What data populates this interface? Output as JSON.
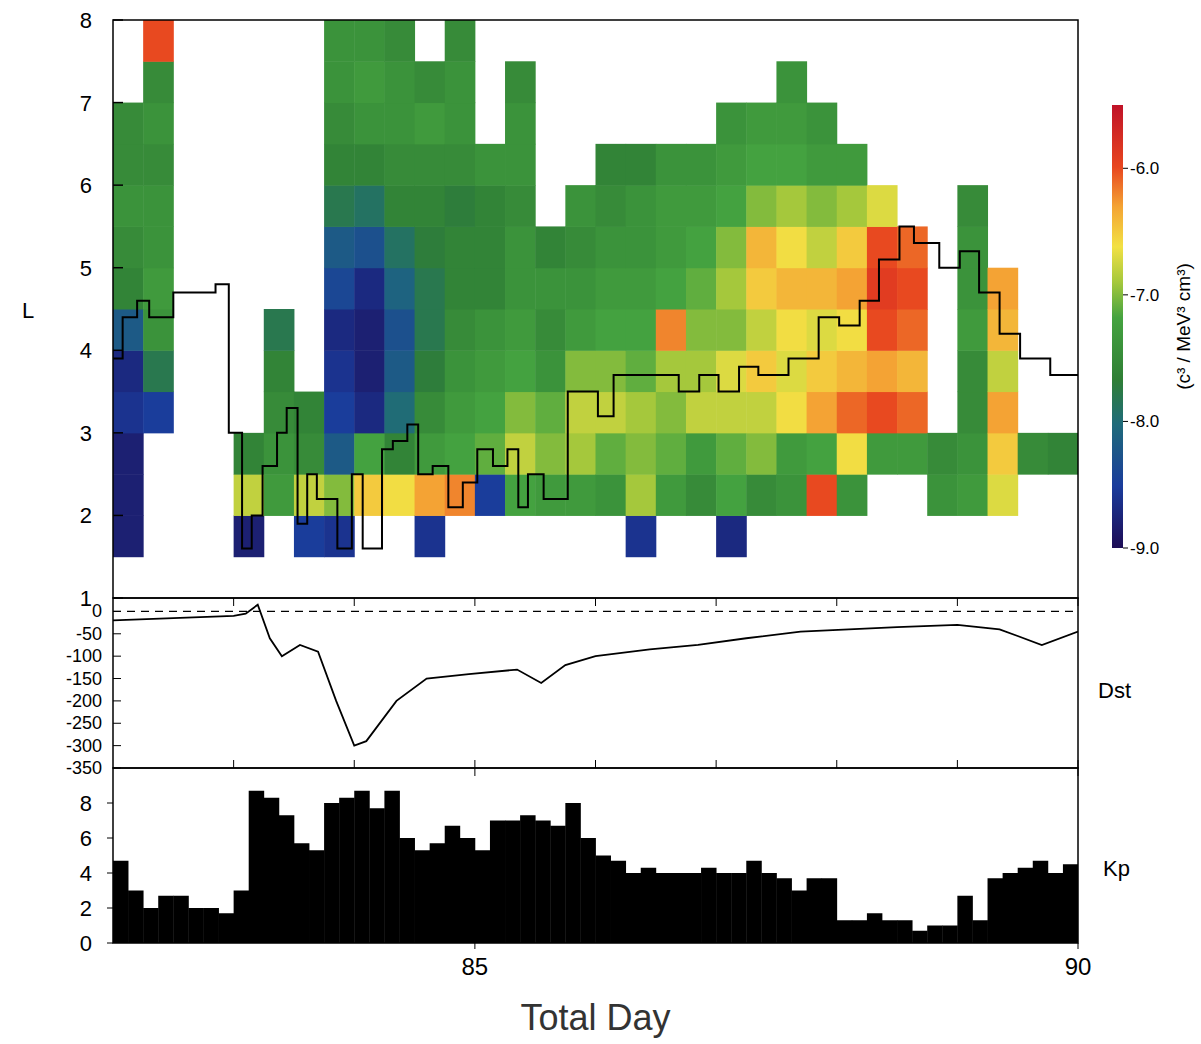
{
  "chart_data": [
    {
      "type": "heatmap",
      "ylabel": "L",
      "xlim": [
        82,
        90
      ],
      "ylim": [
        1,
        8
      ],
      "yticks": [
        1,
        2,
        3,
        4,
        5,
        6,
        7,
        8
      ],
      "tick_labels": "y",
      "x_bins": [
        82,
        82.25,
        82.5,
        82.75,
        83,
        83.25,
        83.5,
        83.75,
        84,
        84.25,
        84.5,
        84.75,
        85,
        85.25,
        85.5,
        85.75,
        86,
        86.25,
        86.5,
        86.75,
        87,
        87.25,
        87.5,
        87.75,
        88,
        88.25,
        88.5,
        88.75,
        89,
        89.25,
        89.5,
        89.75,
        90
      ],
      "y_bins": [
        1.5,
        2,
        2.5,
        3,
        3.5,
        4,
        4.5,
        5,
        5.5,
        6,
        6.5,
        7,
        7.5,
        8
      ],
      "z": [
        [
          -8.8,
          -8.8,
          -8.8,
          -8.6,
          -8.7,
          -8.2,
          -7.6,
          -7.5,
          -7.4,
          -7.5,
          -7.5,
          null,
          null
        ],
        [
          null,
          null,
          null,
          -8.5,
          -7.8,
          -7.4,
          -7.3,
          -7.4,
          -7.4,
          -7.5,
          -7.4,
          -7.5,
          -6.0
        ],
        [
          null,
          null,
          null,
          null,
          null,
          null,
          null,
          null,
          null,
          null,
          null,
          null,
          null
        ],
        [
          null,
          null,
          null,
          null,
          null,
          null,
          null,
          null,
          null,
          null,
          null,
          null,
          null
        ],
        [
          -8.8,
          -6.8,
          -7.6,
          null,
          null,
          null,
          null,
          null,
          null,
          null,
          null,
          null,
          null
        ],
        [
          null,
          -7.3,
          -7.4,
          -7.5,
          -7.6,
          -7.8,
          null,
          null,
          null,
          null,
          null,
          null,
          null
        ],
        [
          -8.5,
          -6.8,
          -7.5,
          -7.6,
          null,
          null,
          null,
          null,
          null,
          null,
          null,
          null,
          null
        ],
        [
          -8.6,
          -7.0,
          -8.2,
          -8.5,
          -8.6,
          -8.7,
          -8.4,
          -8.2,
          -7.8,
          -7.6,
          -7.5,
          -7.4,
          -7.4
        ],
        [
          null,
          -6.5,
          -7.2,
          -8.7,
          -8.8,
          -8.8,
          -8.7,
          -8.3,
          -7.9,
          -7.6,
          -7.4,
          -7.3,
          -7.4
        ],
        [
          null,
          -6.6,
          -7.6,
          -8.0,
          -8.2,
          -8.3,
          -8.1,
          -7.9,
          -7.6,
          -7.5,
          -7.4,
          -7.4,
          -7.5
        ],
        [
          -8.6,
          -6.3,
          -7.3,
          -7.5,
          -7.7,
          -7.8,
          -7.8,
          -7.7,
          -7.6,
          -7.5,
          -7.3,
          -7.5,
          null
        ],
        [
          null,
          -6.2,
          -7.2,
          -7.3,
          -7.4,
          -7.5,
          -7.6,
          -7.6,
          -7.7,
          -7.5,
          -7.4,
          -7.4,
          -7.5
        ],
        [
          null,
          -8.5,
          -7.1,
          -7.2,
          -7.3,
          -7.4,
          -7.6,
          -7.6,
          -7.6,
          -7.4,
          null,
          null,
          null
        ],
        [
          null,
          -7.2,
          -6.8,
          -7.0,
          -7.2,
          -7.3,
          -7.4,
          -7.4,
          -7.5,
          -7.4,
          -7.4,
          -7.5,
          null
        ],
        [
          null,
          -7.3,
          -7.0,
          -7.1,
          -7.4,
          -7.5,
          -7.4,
          -7.6,
          null,
          null,
          null,
          null,
          null
        ],
        [
          null,
          -7.3,
          -6.9,
          -6.8,
          -7.0,
          -7.3,
          -7.4,
          -7.5,
          -7.4,
          null,
          null,
          null,
          null
        ],
        [
          null,
          -7.4,
          -7.1,
          -6.8,
          -7.0,
          -7.2,
          -7.3,
          -7.4,
          -7.5,
          -7.6,
          null,
          null,
          null
        ],
        [
          -8.6,
          -6.9,
          -7.0,
          -6.9,
          -7.1,
          -7.2,
          -7.3,
          -7.4,
          -7.4,
          -7.6,
          null,
          null,
          null
        ],
        [
          null,
          -7.3,
          -7.1,
          -7.0,
          -6.9,
          -6.2,
          -7.2,
          -7.3,
          -7.3,
          -7.4,
          null,
          null,
          null
        ],
        [
          null,
          -7.5,
          -7.3,
          -6.8,
          -6.9,
          -7.0,
          -7.1,
          -7.2,
          -7.3,
          -7.4,
          null,
          null,
          null
        ],
        [
          -8.7,
          -7.2,
          -7.1,
          -6.8,
          -6.7,
          -7.0,
          -6.9,
          -7.0,
          -7.2,
          -7.3,
          -7.4,
          null,
          null
        ],
        [
          null,
          -7.5,
          -7.0,
          -6.8,
          -6.5,
          -6.8,
          -6.5,
          -6.4,
          -7.0,
          -7.2,
          -7.3,
          null,
          null
        ],
        [
          null,
          -7.4,
          -7.3,
          -6.6,
          -6.7,
          -6.6,
          -6.4,
          -6.6,
          -6.9,
          -7.2,
          -7.3,
          -7.4,
          null
        ],
        [
          null,
          -6.0,
          -7.2,
          -6.3,
          -6.5,
          -6.7,
          -6.4,
          -6.8,
          -7.0,
          -7.3,
          -7.4,
          null,
          null
        ],
        [
          null,
          -7.4,
          -6.6,
          -6.1,
          -6.4,
          -6.6,
          -6.3,
          -6.5,
          -6.9,
          -7.3,
          null,
          null,
          null
        ],
        [
          null,
          null,
          -7.3,
          -6.0,
          -6.3,
          -6.0,
          -5.9,
          -6.0,
          -6.7,
          null,
          null,
          null,
          null
        ],
        [
          null,
          null,
          -7.3,
          -6.1,
          -6.4,
          -6.1,
          -6.0,
          -6.1,
          null,
          null,
          null,
          null,
          null
        ],
        [
          null,
          -7.4,
          -7.5,
          null,
          null,
          null,
          null,
          null,
          null,
          null,
          null,
          null,
          null
        ],
        [
          null,
          -7.3,
          -7.4,
          -7.5,
          -7.5,
          -7.3,
          -7.4,
          -7.4,
          -7.5,
          null,
          null,
          null,
          null
        ],
        [
          null,
          -6.7,
          -6.5,
          -6.3,
          -6.8,
          -6.4,
          -6.3,
          null,
          null,
          null,
          null,
          null,
          null
        ],
        [
          null,
          null,
          -7.5,
          null,
          null,
          null,
          null,
          null,
          null,
          null,
          null,
          null,
          null
        ],
        [
          null,
          null,
          -7.6,
          null,
          null,
          null,
          null,
          null,
          null,
          null,
          null,
          null,
          null
        ]
      ],
      "colorbar": {
        "range": [
          -9,
          -5.5
        ],
        "ticks": [
          {
            "value": -6,
            "label": "-6.0"
          },
          {
            "value": -7,
            "label": "-7.0"
          },
          {
            "value": -8,
            "label": "-8.0"
          },
          {
            "value": -9,
            "label": "-9.0"
          }
        ],
        "label": "(c³ / MeV³ cm³)"
      },
      "series": [
        {
          "type": "line",
          "color": "#000000",
          "line_style": "step",
          "x": [
            82.0,
            82.08,
            82.2,
            82.3,
            82.5,
            82.75,
            82.85,
            82.96,
            83.07,
            83.15,
            83.24,
            83.36,
            83.44,
            83.53,
            83.61,
            83.69,
            83.86,
            83.98,
            84.07,
            84.23,
            84.32,
            84.44,
            84.53,
            84.65,
            84.78,
            84.9,
            85.02,
            85.15,
            85.27,
            85.36,
            85.44,
            85.57,
            85.77,
            86.02,
            86.15,
            86.36,
            86.69,
            86.86,
            87.02,
            87.19,
            87.35,
            87.6,
            87.85,
            88.02,
            88.19,
            88.35,
            88.52,
            88.64,
            88.85,
            89.02,
            89.18,
            89.35,
            89.52,
            89.77,
            90
          ],
          "values": [
            3.9,
            4.4,
            4.6,
            4.4,
            4.7,
            4.7,
            4.8,
            3.0,
            1.6,
            2.0,
            2.6,
            3.0,
            3.3,
            1.9,
            2.5,
            2.2,
            1.6,
            2.5,
            1.6,
            2.8,
            2.9,
            3.1,
            2.5,
            2.6,
            2.1,
            2.4,
            2.8,
            2.6,
            2.8,
            2.1,
            2.5,
            2.2,
            3.5,
            3.2,
            3.7,
            3.7,
            3.5,
            3.7,
            3.5,
            3.8,
            3.7,
            3.9,
            4.4,
            4.3,
            4.6,
            5.1,
            5.5,
            5.3,
            5.0,
            5.2,
            4.7,
            4.2,
            3.9,
            3.7,
            3.7
          ]
        }
      ]
    },
    {
      "type": "line",
      "ylabel": "Dst",
      "xlim": [
        82,
        90
      ],
      "ylim": [
        -350,
        30
      ],
      "yticks": [
        0,
        -50,
        -100,
        -150,
        -200,
        -250,
        -300,
        -350
      ],
      "xticks": [
        83,
        84,
        85,
        86,
        87,
        88,
        89,
        90
      ],
      "tick_labels": "y",
      "color": "#000000",
      "x": [
        82,
        82.5,
        83,
        83.1,
        83.2,
        83.3,
        83.4,
        83.55,
        83.7,
        83.85,
        84.0,
        84.1,
        84.35,
        84.6,
        84.95,
        85.35,
        85.55,
        85.75,
        86,
        86.45,
        86.85,
        87.25,
        87.7,
        88.1,
        88.5,
        89.0,
        89.35,
        89.7,
        90
      ],
      "values": [
        -20,
        -15,
        -10,
        -5,
        15,
        -60,
        -100,
        -75,
        -90,
        -200,
        -300,
        -290,
        -200,
        -150,
        -140,
        -130,
        -160,
        -120,
        -100,
        -85,
        -75,
        -60,
        -45,
        -40,
        -35,
        -30,
        -40,
        -75,
        -45
      ]
    },
    {
      "type": "bar",
      "ylabel": "Kp",
      "xlabel": "Total Day",
      "xlim": [
        82,
        90
      ],
      "ylim": [
        0,
        10
      ],
      "yticks": [
        0,
        2,
        4,
        6,
        8
      ],
      "xticks": [
        85,
        90
      ],
      "color": "#000000",
      "bins": [
        82,
        82.125,
        82.25,
        82.375,
        82.5,
        82.625,
        82.75,
        82.875,
        83,
        83.125,
        83.25,
        83.375,
        83.5,
        83.625,
        83.75,
        83.875,
        84,
        84.125,
        84.25,
        84.375,
        84.5,
        84.625,
        84.75,
        84.875,
        85,
        85.125,
        85.25,
        85.375,
        85.5,
        85.625,
        85.75,
        85.875,
        86,
        86.125,
        86.25,
        86.375,
        86.5,
        86.625,
        86.75,
        86.875,
        87,
        87.125,
        87.25,
        87.375,
        87.5,
        87.625,
        87.75,
        87.875,
        88,
        88.125,
        88.25,
        88.375,
        88.5,
        88.625,
        88.75,
        88.875,
        89,
        89.125,
        89.25,
        89.375,
        89.5,
        89.625,
        89.75,
        89.875,
        90
      ],
      "values": [
        4.7,
        3,
        2,
        2.7,
        2.7,
        2,
        2,
        1.7,
        3,
        8.7,
        8.3,
        7.3,
        5.7,
        5.3,
        8,
        8.3,
        8.7,
        7.7,
        8.7,
        6,
        5.3,
        5.7,
        6.7,
        6,
        5.3,
        7,
        7,
        7.3,
        7,
        6.7,
        8,
        6,
        5,
        4.7,
        4,
        4.3,
        4,
        4,
        4,
        4.3,
        4,
        4,
        4.7,
        4,
        3.7,
        3,
        3.7,
        3.7,
        1.3,
        1.3,
        1.7,
        1.3,
        1.3,
        0.7,
        1,
        1,
        2.7,
        1.3,
        3.7,
        4,
        4.3,
        4.7,
        4,
        4.5
      ]
    }
  ]
}
